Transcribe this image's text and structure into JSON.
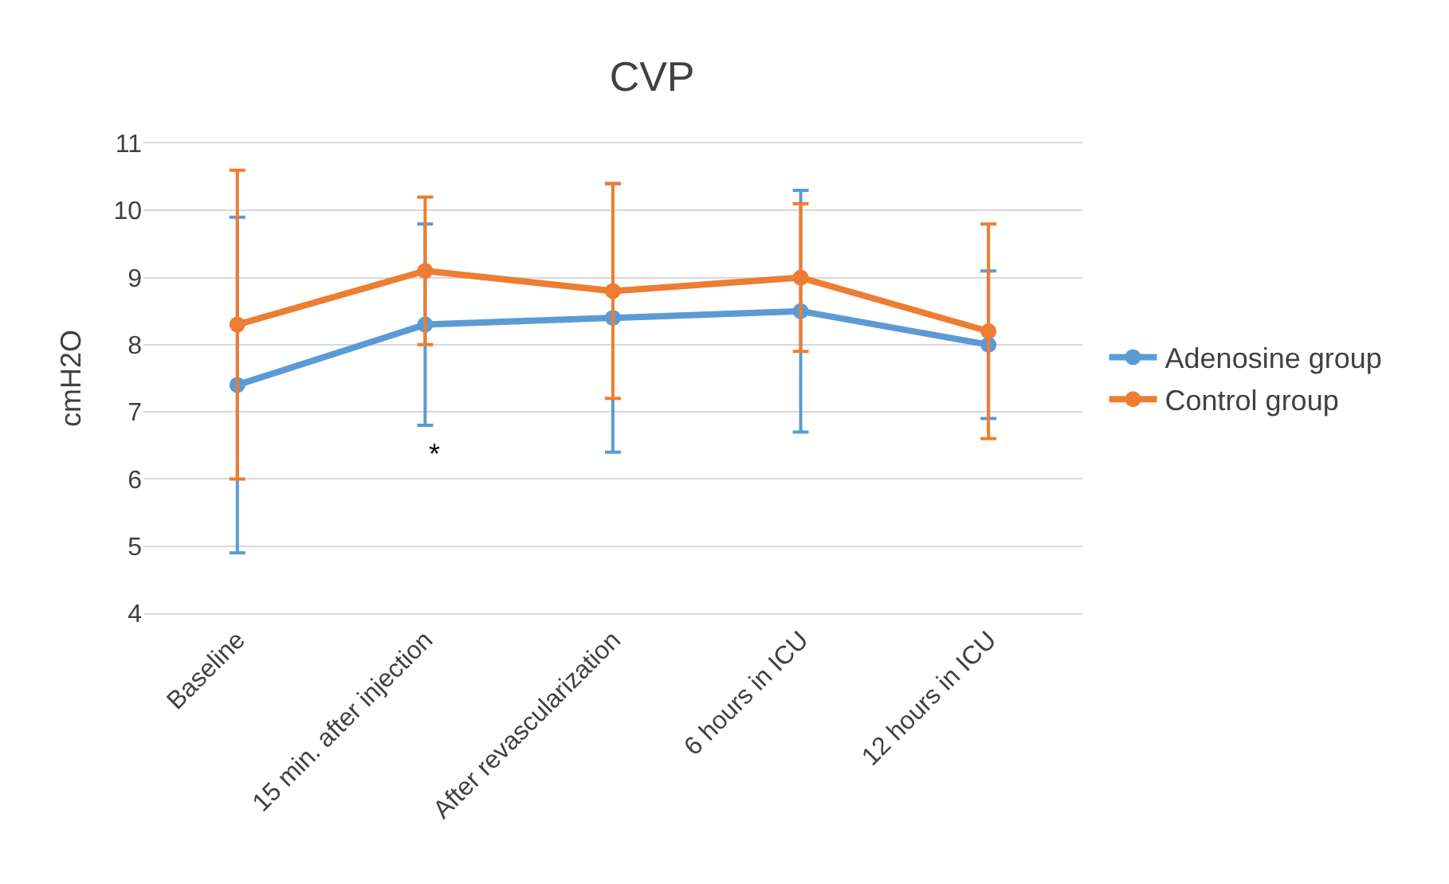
{
  "chart_data": {
    "type": "line",
    "title": "CVP",
    "ylabel": "cmH2O",
    "categories": [
      "Baseline",
      "15 min. after injection",
      "After revascularization",
      "6 hours in ICU",
      "12 hours in ICU"
    ],
    "series": [
      {
        "name": "Adenosine group",
        "color": "#5b9bd5",
        "values": [
          7.4,
          8.3,
          8.4,
          8.5,
          8.0
        ],
        "errors": [
          [
            4.9,
            9.9
          ],
          [
            6.8,
            9.8
          ],
          [
            6.4,
            10.4
          ],
          [
            6.7,
            10.3
          ],
          [
            6.9,
            9.1
          ]
        ]
      },
      {
        "name": "Control group",
        "color": "#ed7d31",
        "values": [
          8.3,
          9.1,
          8.8,
          9.0,
          8.2
        ],
        "errors": [
          [
            6.0,
            10.6
          ],
          [
            8.0,
            10.2
          ],
          [
            7.2,
            10.4
          ],
          [
            7.9,
            10.1
          ],
          [
            6.6,
            9.8
          ]
        ]
      }
    ],
    "annotations": [
      "*"
    ],
    "ylim": [
      4,
      11
    ],
    "yticks": [
      4,
      5,
      6,
      7,
      8,
      9,
      10,
      11
    ],
    "grid": "y",
    "legend": "right",
    "marker": "circle",
    "line_style": "solid"
  }
}
